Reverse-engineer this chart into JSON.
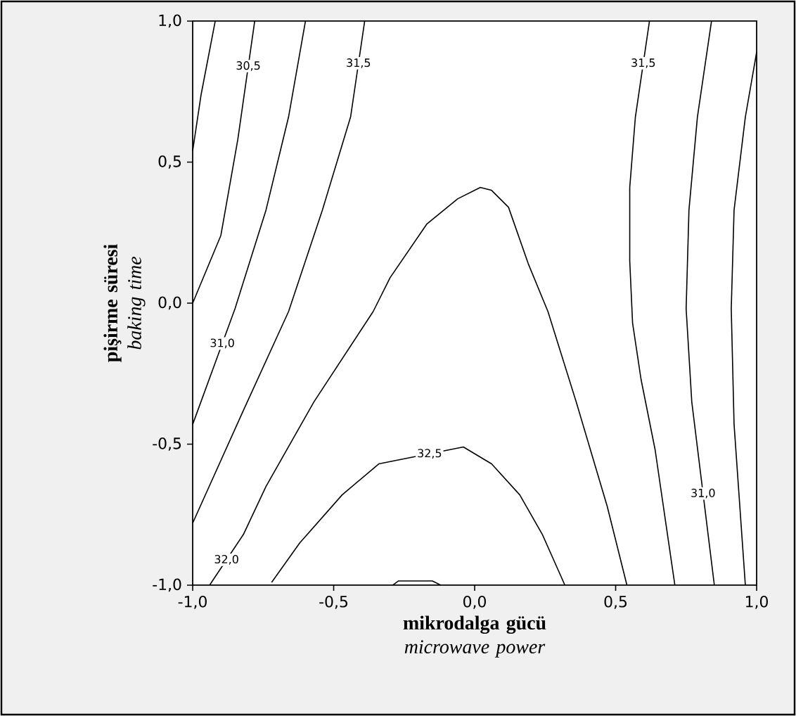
{
  "chart_data": {
    "type": "line",
    "xlabel": "**mikrodalga gücü** *microwave power*",
    "ylabel": "**pişirme süresi** *baking time*",
    "xlim": [
      -1,
      1
    ],
    "ylim": [
      -1,
      1
    ],
    "xticks": [
      {
        "value": -1,
        "label": "-1,0"
      },
      {
        "value": -0.5,
        "label": "-0,5"
      },
      {
        "value": 0,
        "label": "0,0"
      },
      {
        "value": 0.5,
        "label": "0,5"
      },
      {
        "value": 1,
        "label": "1,0"
      }
    ],
    "yticks": [
      {
        "value": -1,
        "label": "-1,0"
      },
      {
        "value": -0.5,
        "label": "-0,5"
      },
      {
        "value": 0,
        "label": "0,0"
      },
      {
        "value": 0.5,
        "label": "0,5"
      },
      {
        "value": 1,
        "label": "1,0"
      }
    ],
    "grid": false,
    "marker": "none",
    "line_style": "solid",
    "series": [
      {
        "color": "#000000",
        "x": [
          -0.92,
          -0.97,
          -1.0
        ],
        "values": [
          1.0,
          0.74,
          0.54
        ]
      },
      {
        "name": "30,5",
        "color": "#000000",
        "x": [
          -0.78,
          -0.84,
          -0.9,
          -1.0
        ],
        "values": [
          1.0,
          0.58,
          0.24,
          0.0
        ]
      },
      {
        "name": "31,0",
        "color": "#000000",
        "x": [
          -0.6,
          -0.66,
          -0.74,
          -0.85,
          -1.0
        ],
        "values": [
          1.0,
          0.66,
          0.33,
          -0.02,
          -0.43
        ]
      },
      {
        "name": "31,5",
        "color": "#000000",
        "x": [
          -0.39,
          -0.44,
          -0.54,
          -0.66,
          -0.82,
          -1.0
        ],
        "values": [
          1.0,
          0.66,
          0.33,
          -0.03,
          -0.38,
          -0.78
        ]
      },
      {
        "name": "32,0",
        "color": "#000000",
        "x": [
          -0.94,
          -0.82,
          -0.74,
          -0.57,
          -0.36,
          -0.3,
          -0.17,
          -0.06,
          0.02,
          0.06,
          0.12,
          0.19,
          0.26,
          0.36,
          0.47,
          0.54
        ],
        "values": [
          -1.0,
          -0.82,
          -0.65,
          -0.35,
          -0.03,
          0.09,
          0.28,
          0.37,
          0.41,
          0.4,
          0.34,
          0.14,
          -0.03,
          -0.35,
          -0.72,
          -1.0
        ]
      },
      {
        "name": "32,5",
        "color": "#000000",
        "x": [
          -0.72,
          -0.62,
          -0.47,
          -0.34,
          -0.04,
          0.06,
          0.16,
          0.24,
          0.32
        ],
        "values": [
          -0.99,
          -0.85,
          -0.68,
          -0.57,
          -0.51,
          -0.57,
          -0.68,
          -0.82,
          -1.0
        ]
      },
      {
        "color": "#000000",
        "x": [
          -0.29,
          -0.27,
          -0.15,
          -0.12
        ],
        "values": [
          -1.0,
          -0.985,
          -0.985,
          -1.0
        ]
      },
      {
        "name": "31,5",
        "color": "#000000",
        "x": [
          0.62,
          0.57,
          0.55,
          0.55,
          0.56,
          0.59,
          0.64,
          0.71
        ],
        "values": [
          1.0,
          0.66,
          0.41,
          0.15,
          -0.07,
          -0.27,
          -0.52,
          -1.0
        ]
      },
      {
        "name": "31,0",
        "color": "#000000",
        "x": [
          0.84,
          0.79,
          0.76,
          0.75,
          0.77,
          0.85
        ],
        "values": [
          1.0,
          0.66,
          0.33,
          -0.02,
          -0.35,
          -1.0
        ]
      },
      {
        "color": "#000000",
        "x": [
          1.0,
          0.96,
          0.92,
          0.91,
          0.92,
          0.96
        ],
        "values": [
          0.89,
          0.66,
          0.33,
          -0.02,
          -0.43,
          -1.0
        ]
      }
    ]
  }
}
